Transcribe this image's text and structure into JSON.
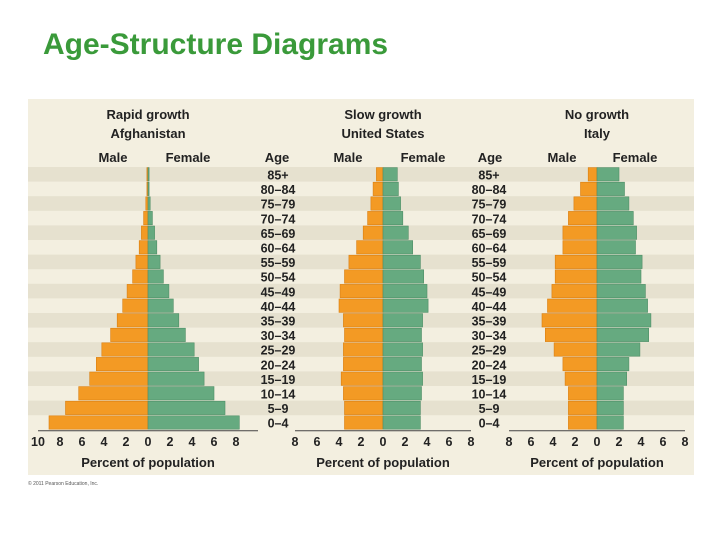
{
  "slide": {
    "title": "Age-Structure Diagrams"
  },
  "credit": "© 2011 Pearson Education, Inc.",
  "colors": {
    "male": "#f39a24",
    "female": "#66aa80",
    "band": "#e6e1cf",
    "background": "#f3efe0"
  },
  "chart_data": [
    {
      "type": "bar",
      "title": "Rapid growth",
      "subtitle": "Afghanistan",
      "left_label": "Male",
      "right_label": "Female",
      "age_header": "Age",
      "xlabel": "Percent of population",
      "x_ticks": [
        "10",
        "8",
        "6",
        "4",
        "2",
        "0",
        "2",
        "4",
        "6",
        "8"
      ],
      "xlim": [
        -10,
        10
      ],
      "categories": [
        "85+",
        "80–84",
        "75–79",
        "70–74",
        "65–69",
        "60–64",
        "55–59",
        "50–54",
        "45–49",
        "40–44",
        "35–39",
        "30–34",
        "25–29",
        "20–24",
        "15–19",
        "10–14",
        "5–9",
        "0–4"
      ],
      "series": [
        {
          "name": "Male",
          "values": [
            0.1,
            0.1,
            0.2,
            0.4,
            0.6,
            0.8,
            1.1,
            1.4,
            1.9,
            2.3,
            2.8,
            3.4,
            4.2,
            4.7,
            5.3,
            6.3,
            7.5,
            9.0
          ]
        },
        {
          "name": "Female",
          "values": [
            0.1,
            0.1,
            0.2,
            0.4,
            0.6,
            0.8,
            1.1,
            1.4,
            1.9,
            2.3,
            2.8,
            3.4,
            4.2,
            4.6,
            5.1,
            6.0,
            7.0,
            8.3
          ]
        }
      ]
    },
    {
      "type": "bar",
      "title": "Slow growth",
      "subtitle": "United States",
      "left_label": "Male",
      "right_label": "Female",
      "age_header": "Age",
      "xlabel": "Percent of population",
      "x_ticks": [
        "8",
        "6",
        "4",
        "2",
        "0",
        "2",
        "4",
        "6",
        "8"
      ],
      "xlim": [
        -8,
        8
      ],
      "categories": [
        "85+",
        "80–84",
        "75–79",
        "70–74",
        "65–69",
        "60–64",
        "55–59",
        "50–54",
        "45–49",
        "40–44",
        "35–39",
        "30–34",
        "25–29",
        "20–24",
        "15–19",
        "10–14",
        "5–9",
        "0–4"
      ],
      "series": [
        {
          "name": "Male",
          "values": [
            0.6,
            0.9,
            1.1,
            1.4,
            1.8,
            2.4,
            3.1,
            3.5,
            3.9,
            4.0,
            3.6,
            3.5,
            3.6,
            3.6,
            3.8,
            3.6,
            3.5,
            3.5
          ]
        },
        {
          "name": "Female",
          "values": [
            1.3,
            1.4,
            1.6,
            1.8,
            2.3,
            2.7,
            3.4,
            3.7,
            4.0,
            4.1,
            3.6,
            3.5,
            3.6,
            3.5,
            3.6,
            3.5,
            3.4,
            3.4
          ]
        }
      ]
    },
    {
      "type": "bar",
      "title": "No growth",
      "subtitle": "Italy",
      "left_label": "Male",
      "right_label": "Female",
      "age_header": "",
      "xlabel": "Percent of population",
      "x_ticks": [
        "8",
        "6",
        "4",
        "2",
        "0",
        "2",
        "4",
        "6",
        "8"
      ],
      "xlim": [
        -8,
        8
      ],
      "categories": [
        "85+",
        "80–84",
        "75–79",
        "70–74",
        "65–69",
        "60–64",
        "55–59",
        "50–54",
        "45–49",
        "40–44",
        "35–39",
        "30–34",
        "25–29",
        "20–24",
        "15–19",
        "10–14",
        "5–9",
        "0–4"
      ],
      "series": [
        {
          "name": "Male",
          "values": [
            0.8,
            1.5,
            2.1,
            2.6,
            3.1,
            3.1,
            3.8,
            3.8,
            4.1,
            4.5,
            5.0,
            4.7,
            3.9,
            3.1,
            2.9,
            2.6,
            2.6,
            2.6
          ]
        },
        {
          "name": "Female",
          "values": [
            2.0,
            2.5,
            2.9,
            3.3,
            3.6,
            3.5,
            4.1,
            4.0,
            4.4,
            4.6,
            4.9,
            4.7,
            3.9,
            2.9,
            2.7,
            2.4,
            2.4,
            2.4
          ]
        }
      ]
    }
  ]
}
